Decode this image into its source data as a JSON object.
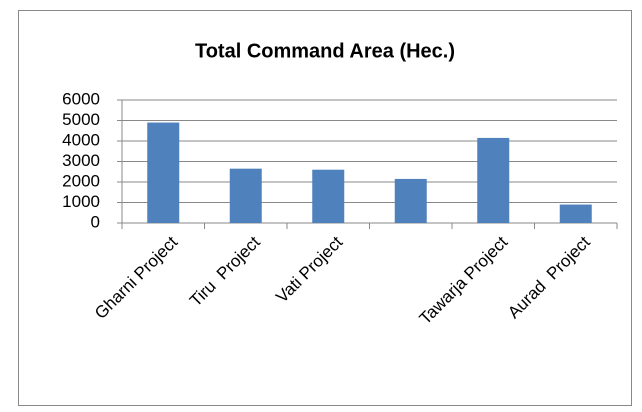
{
  "chart_data": {
    "type": "bar",
    "title": "Total Command Area (Hec.)",
    "categories": [
      "Gharni Project",
      "Tiru  Project",
      "Vati Project",
      null,
      "Tawarja Project",
      "Aurad  Project"
    ],
    "values": [
      4900,
      2650,
      2600,
      2150,
      4150,
      900
    ],
    "color": "#4f81bd",
    "ylim": [
      0,
      6000
    ],
    "yticks": [
      0,
      1000,
      2000,
      3000,
      4000,
      5000,
      6000
    ],
    "grid": true
  }
}
